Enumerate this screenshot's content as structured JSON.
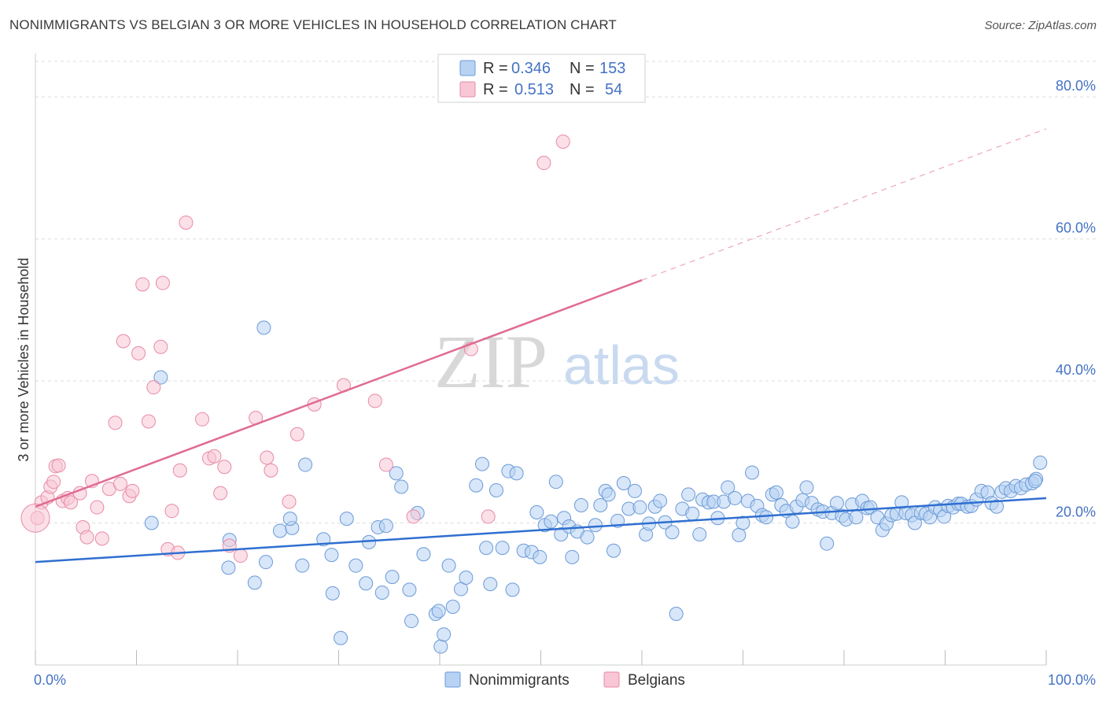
{
  "title": "NONIMMIGRANTS VS BELGIAN 3 OR MORE VEHICLES IN HOUSEHOLD CORRELATION CHART",
  "source": "Source: ZipAtlas.com",
  "watermark": {
    "zip": "ZIP",
    "atlas": "atlas"
  },
  "legend": {
    "r_label": "R =",
    "n_label": "N =",
    "rows": [
      {
        "series": "Nonimmigrants",
        "r": "0.346",
        "n": "153",
        "fill": "#b7d2f3",
        "stroke": "#6b9ad8"
      },
      {
        "series": "Belgians",
        "r": "0.513",
        "n": "54",
        "fill": "#f8c6d5",
        "stroke": "#e88aa6"
      }
    ]
  },
  "colors": {
    "blue_line": "#2f6fd0",
    "pink_line": "#e06b93",
    "blue_pt_fill": "#b7d2f3",
    "blue_pt_stroke": "#6b9ad8",
    "pink_pt_fill": "#f8c6d5",
    "pink_pt_stroke": "#e88aa6",
    "tick_text": "#4472c4"
  },
  "chart_data": {
    "type": "scatter",
    "title": "NONIMMIGRANTS VS BELGIAN 3 OR MORE VEHICLES IN HOUSEHOLD CORRELATION CHART",
    "xlabel": "",
    "ylabel": "3 or more Vehicles in Household",
    "xlim": [
      0,
      100
    ],
    "ylim": [
      0,
      85
    ],
    "x_tick_labels": [
      "0.0%",
      "100.0%"
    ],
    "y_ticks": [
      20,
      40,
      60,
      80
    ],
    "y_tick_labels": [
      "20.0%",
      "40.0%",
      "60.0%",
      "80.0%"
    ],
    "grid": true,
    "legend_position": "top-center",
    "series": [
      {
        "name": "Nonimmigrants",
        "r": 0.346,
        "n": 153,
        "trend": {
          "x": [
            0,
            100
          ],
          "y": [
            14.5,
            23.5
          ]
        },
        "points": [
          [
            11.5,
            20.0
          ],
          [
            22.6,
            47.5
          ],
          [
            12.4,
            40.5
          ],
          [
            19.2,
            17.6
          ],
          [
            19.1,
            13.7
          ],
          [
            21.7,
            11.6
          ],
          [
            22.8,
            14.5
          ],
          [
            24.2,
            18.9
          ],
          [
            25.4,
            19.3
          ],
          [
            25.2,
            20.6
          ],
          [
            26.4,
            14.0
          ],
          [
            26.7,
            28.2
          ],
          [
            28.5,
            17.7
          ],
          [
            29.3,
            15.5
          ],
          [
            29.4,
            10.1
          ],
          [
            30.2,
            3.8
          ],
          [
            30.8,
            20.6
          ],
          [
            31.7,
            14.0
          ],
          [
            32.7,
            11.5
          ],
          [
            33.0,
            17.3
          ],
          [
            33.9,
            19.4
          ],
          [
            34.3,
            10.2
          ],
          [
            34.7,
            19.6
          ],
          [
            35.3,
            12.4
          ],
          [
            35.7,
            27.0
          ],
          [
            36.2,
            25.1
          ],
          [
            37.0,
            10.6
          ],
          [
            37.2,
            6.2
          ],
          [
            37.8,
            21.4
          ],
          [
            38.4,
            15.6
          ],
          [
            39.6,
            7.2
          ],
          [
            39.9,
            7.6
          ],
          [
            40.1,
            2.6
          ],
          [
            40.4,
            4.3
          ],
          [
            40.9,
            14.0
          ],
          [
            41.3,
            8.2
          ],
          [
            42.1,
            10.7
          ],
          [
            42.6,
            12.3
          ],
          [
            43.6,
            25.3
          ],
          [
            44.2,
            28.3
          ],
          [
            44.6,
            16.5
          ],
          [
            45.0,
            11.4
          ],
          [
            45.6,
            24.6
          ],
          [
            46.2,
            16.5
          ],
          [
            46.8,
            27.3
          ],
          [
            47.2,
            10.6
          ],
          [
            47.6,
            27.0
          ],
          [
            48.3,
            16.1
          ],
          [
            49.1,
            15.9
          ],
          [
            49.6,
            21.5
          ],
          [
            49.9,
            15.2
          ],
          [
            50.4,
            19.7
          ],
          [
            51.0,
            20.2
          ],
          [
            51.5,
            25.8
          ],
          [
            52.0,
            18.4
          ],
          [
            52.3,
            20.7
          ],
          [
            52.8,
            19.5
          ],
          [
            53.1,
            15.2
          ],
          [
            53.6,
            18.8
          ],
          [
            54.0,
            22.5
          ],
          [
            54.6,
            18.0
          ],
          [
            55.4,
            19.7
          ],
          [
            55.9,
            22.5
          ],
          [
            56.4,
            24.5
          ],
          [
            56.7,
            24.0
          ],
          [
            57.2,
            16.1
          ],
          [
            57.6,
            20.3
          ],
          [
            58.2,
            25.6
          ],
          [
            58.7,
            22.0
          ],
          [
            59.3,
            24.5
          ],
          [
            59.8,
            22.2
          ],
          [
            60.4,
            18.4
          ],
          [
            60.7,
            19.9
          ],
          [
            61.3,
            22.3
          ],
          [
            61.8,
            23.1
          ],
          [
            62.3,
            20.1
          ],
          [
            63.0,
            18.7
          ],
          [
            63.4,
            7.2
          ],
          [
            64.0,
            22.0
          ],
          [
            64.6,
            24.0
          ],
          [
            65.0,
            21.3
          ],
          [
            65.7,
            18.4
          ],
          [
            66.0,
            23.3
          ],
          [
            66.6,
            22.9
          ],
          [
            67.1,
            23.0
          ],
          [
            67.5,
            20.7
          ],
          [
            68.1,
            23.0
          ],
          [
            68.5,
            25.0
          ],
          [
            69.2,
            23.5
          ],
          [
            69.6,
            18.3
          ],
          [
            70.0,
            20.0
          ],
          [
            70.5,
            23.1
          ],
          [
            70.9,
            27.1
          ],
          [
            71.4,
            22.4
          ],
          [
            71.9,
            21.1
          ],
          [
            72.3,
            20.8
          ],
          [
            72.9,
            24.0
          ],
          [
            73.3,
            24.3
          ],
          [
            73.8,
            22.5
          ],
          [
            74.3,
            21.7
          ],
          [
            74.9,
            20.2
          ],
          [
            75.3,
            22.3
          ],
          [
            75.9,
            23.2
          ],
          [
            76.3,
            25.0
          ],
          [
            76.8,
            22.8
          ],
          [
            77.4,
            21.9
          ],
          [
            77.9,
            21.6
          ],
          [
            78.3,
            17.1
          ],
          [
            78.8,
            21.4
          ],
          [
            79.3,
            22.8
          ],
          [
            79.8,
            21.0
          ],
          [
            80.2,
            20.5
          ],
          [
            80.8,
            22.6
          ],
          [
            81.2,
            20.8
          ],
          [
            81.8,
            23.1
          ],
          [
            82.3,
            22.1
          ],
          [
            82.6,
            22.2
          ],
          [
            83.3,
            20.8
          ],
          [
            83.8,
            19.0
          ],
          [
            84.2,
            19.9
          ],
          [
            84.7,
            21.1
          ],
          [
            85.2,
            21.3
          ],
          [
            85.7,
            22.9
          ],
          [
            86.1,
            21.4
          ],
          [
            86.7,
            21.1
          ],
          [
            87.0,
            20.0
          ],
          [
            87.6,
            21.4
          ],
          [
            88.1,
            21.3
          ],
          [
            88.5,
            20.8
          ],
          [
            89.0,
            22.2
          ],
          [
            89.5,
            21.8
          ],
          [
            89.9,
            20.9
          ],
          [
            90.3,
            22.4
          ],
          [
            90.8,
            22.2
          ],
          [
            91.3,
            22.7
          ],
          [
            91.6,
            22.7
          ],
          [
            92.2,
            22.3
          ],
          [
            92.6,
            22.4
          ],
          [
            93.1,
            23.3
          ],
          [
            93.6,
            24.5
          ],
          [
            94.2,
            24.3
          ],
          [
            94.6,
            22.8
          ],
          [
            95.1,
            22.3
          ],
          [
            95.6,
            24.4
          ],
          [
            96.0,
            24.9
          ],
          [
            96.5,
            24.5
          ],
          [
            97.0,
            25.2
          ],
          [
            97.5,
            24.9
          ],
          [
            98.0,
            25.4
          ],
          [
            98.6,
            25.6
          ],
          [
            99.0,
            26.2
          ],
          [
            99.4,
            28.5
          ],
          [
            98.9,
            25.9
          ]
        ]
      },
      {
        "name": "Belgians",
        "r": 0.513,
        "n": 54,
        "trend": {
          "x": [
            0,
            60
          ],
          "y": [
            22.3,
            54.2
          ]
        },
        "trend_dashed": {
          "x": [
            60,
            100
          ],
          "y": [
            54.2,
            75.5
          ]
        },
        "points": [
          [
            0.2,
            20.7
          ],
          [
            0.6,
            22.9
          ],
          [
            1.2,
            23.6
          ],
          [
            1.5,
            25.1
          ],
          [
            1.8,
            25.8
          ],
          [
            2.0,
            28.0
          ],
          [
            2.3,
            28.1
          ],
          [
            2.7,
            23.1
          ],
          [
            3.2,
            23.5
          ],
          [
            3.5,
            22.9
          ],
          [
            4.4,
            24.2
          ],
          [
            4.7,
            19.4
          ],
          [
            5.1,
            18.0
          ],
          [
            5.6,
            25.9
          ],
          [
            6.1,
            22.2
          ],
          [
            6.6,
            17.8
          ],
          [
            7.3,
            24.8
          ],
          [
            7.9,
            34.1
          ],
          [
            8.4,
            25.5
          ],
          [
            8.7,
            45.6
          ],
          [
            9.3,
            23.8
          ],
          [
            9.6,
            24.5
          ],
          [
            10.2,
            43.9
          ],
          [
            10.6,
            53.6
          ],
          [
            11.2,
            34.3
          ],
          [
            11.7,
            39.1
          ],
          [
            12.4,
            44.8
          ],
          [
            12.6,
            53.8
          ],
          [
            13.1,
            16.3
          ],
          [
            13.5,
            21.7
          ],
          [
            14.1,
            15.8
          ],
          [
            14.3,
            27.4
          ],
          [
            14.9,
            62.3
          ],
          [
            16.5,
            34.6
          ],
          [
            17.2,
            29.1
          ],
          [
            17.7,
            29.4
          ],
          [
            18.3,
            24.2
          ],
          [
            18.7,
            27.9
          ],
          [
            19.2,
            16.8
          ],
          [
            20.3,
            15.4
          ],
          [
            21.8,
            34.8
          ],
          [
            22.9,
            29.2
          ],
          [
            23.3,
            27.4
          ],
          [
            25.1,
            23.0
          ],
          [
            25.9,
            32.5
          ],
          [
            27.6,
            36.7
          ],
          [
            30.5,
            39.4
          ],
          [
            33.6,
            37.2
          ],
          [
            34.7,
            28.2
          ],
          [
            37.4,
            20.9
          ],
          [
            43.1,
            44.5
          ],
          [
            44.8,
            20.9
          ],
          [
            50.3,
            70.7
          ],
          [
            52.2,
            73.7
          ]
        ]
      }
    ]
  }
}
